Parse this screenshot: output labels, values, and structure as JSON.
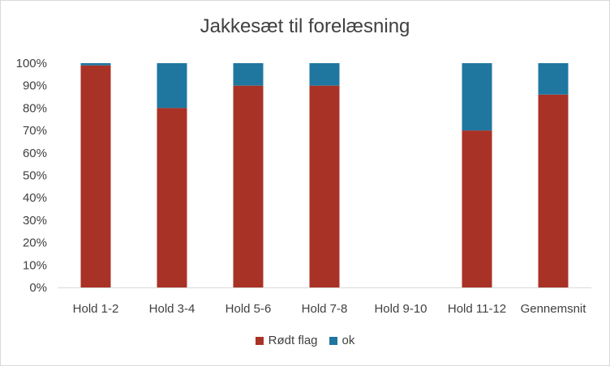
{
  "chart_data": {
    "type": "bar",
    "stacked": true,
    "title": "Jakkesæt til forelæsning",
    "xlabel": "",
    "ylabel": "",
    "categories": [
      "Hold 1-2",
      "Hold 3-4",
      "Hold 5-6",
      "Hold 7-8",
      "Hold 9-10",
      "Hold 11-12",
      "Gennemsnit"
    ],
    "series": [
      {
        "name": "Rødt flag",
        "color": "#a93226",
        "values": [
          99,
          80,
          90,
          90,
          0,
          70,
          86
        ]
      },
      {
        "name": "ok",
        "color": "#1f77a0",
        "values": [
          1,
          20,
          10,
          10,
          0,
          30,
          14
        ]
      }
    ],
    "y_ticks": [
      "0%",
      "10%",
      "20%",
      "30%",
      "40%",
      "50%",
      "60%",
      "70%",
      "80%",
      "90%",
      "100%"
    ],
    "ylim": [
      0,
      100
    ],
    "grid": false,
    "legend_position": "bottom"
  }
}
